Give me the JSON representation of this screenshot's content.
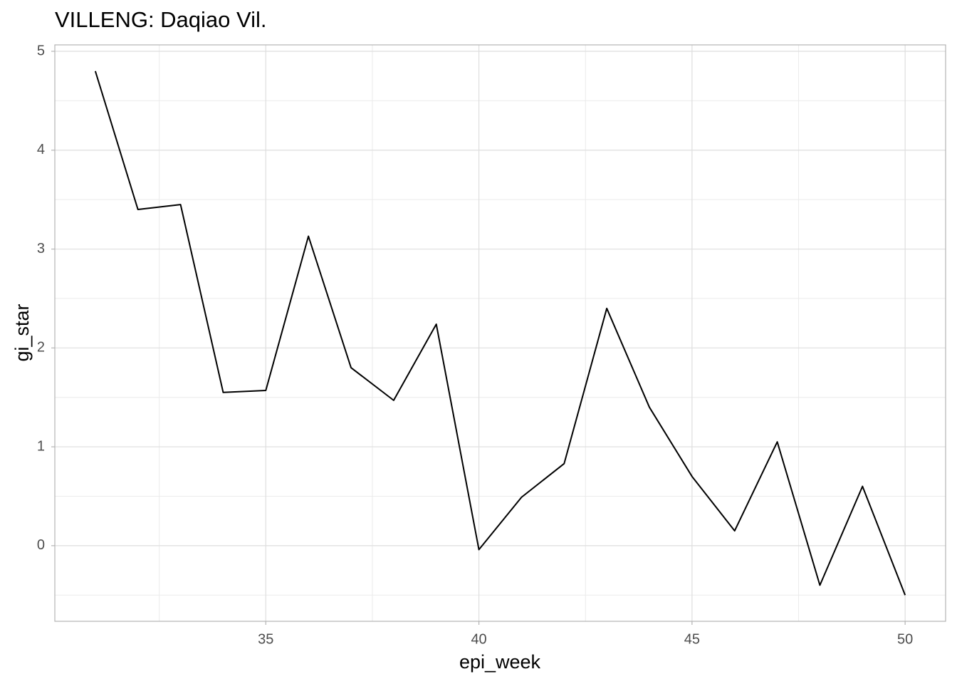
{
  "chart_data": {
    "type": "line",
    "title": "VILLENG: Daqiao Vil.",
    "x_label": "epi_week",
    "y_label": "gi_star",
    "x": [
      31,
      32,
      33,
      34,
      35,
      36,
      37,
      38,
      39,
      40,
      41,
      42,
      43,
      44,
      45,
      46,
      47,
      48,
      49,
      50
    ],
    "series": [
      {
        "color": "#000000",
        "values": [
          4.8,
          3.4,
          3.45,
          1.55,
          1.57,
          3.13,
          1.8,
          1.47,
          2.24,
          -0.04,
          0.49,
          0.83,
          2.4,
          1.4,
          0.7,
          0.15,
          1.05,
          -0.4,
          0.6,
          -0.5
        ]
      }
    ],
    "xlim": [
      30.05,
      50.95
    ],
    "xticks": [
      35,
      40,
      45,
      50
    ],
    "xminor": [
      32.5,
      37.5,
      42.5,
      47.5
    ],
    "ylim": [
      -0.765,
      5.065
    ],
    "yticks": [
      0,
      1,
      2,
      3,
      4,
      5
    ],
    "yminor": [
      -0.5,
      0.5,
      1.5,
      2.5,
      3.5,
      4.5
    ],
    "grid": true
  }
}
